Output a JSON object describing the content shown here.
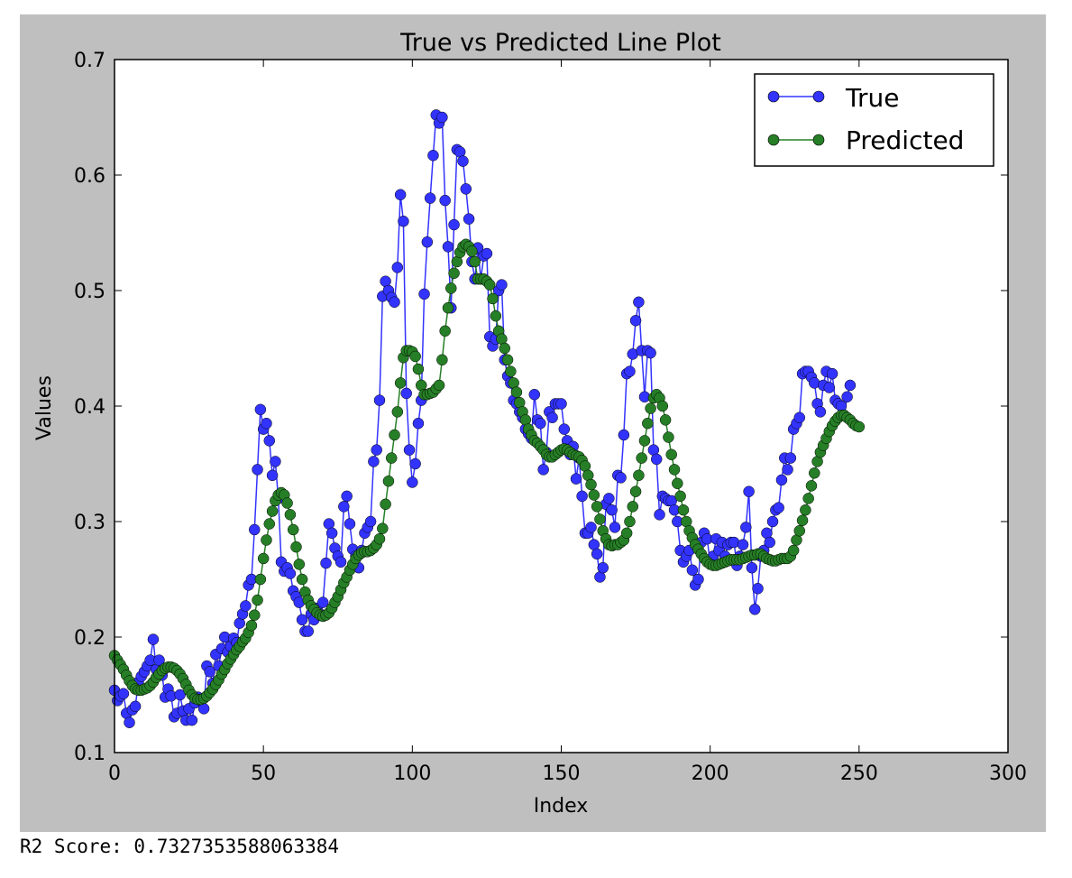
{
  "chart_data": {
    "type": "line",
    "title": "True vs Predicted Line Plot",
    "xlabel": "Index",
    "ylabel": "Values",
    "xlim": [
      0,
      300
    ],
    "ylim": [
      0.1,
      0.7
    ],
    "xticks": [
      0,
      50,
      100,
      150,
      200,
      250,
      300
    ],
    "yticks": [
      0.1,
      0.2,
      0.3,
      0.4,
      0.5,
      0.6,
      0.7
    ],
    "grid": false,
    "legend_position": "top-right",
    "series": [
      {
        "name": "True",
        "color": "#3333ff",
        "values": [
          0.154,
          0.145,
          0.149,
          0.151,
          0.134,
          0.126,
          0.137,
          0.14,
          0.161,
          0.166,
          0.17,
          0.175,
          0.18,
          0.198,
          0.172,
          0.18,
          0.167,
          0.148,
          0.155,
          0.149,
          0.131,
          0.134,
          0.15,
          0.136,
          0.128,
          0.138,
          0.128,
          0.143,
          0.148,
          0.145,
          0.138,
          0.175,
          0.17,
          0.16,
          0.185,
          0.175,
          0.19,
          0.2,
          0.187,
          0.192,
          0.199,
          0.195,
          0.212,
          0.22,
          0.227,
          0.245,
          0.25,
          0.293,
          0.345,
          0.397,
          0.38,
          0.385,
          0.37,
          0.34,
          0.352,
          0.32,
          0.265,
          0.257,
          0.26,
          0.255,
          0.24,
          0.235,
          0.23,
          0.215,
          0.205,
          0.205,
          0.22,
          0.215,
          0.225,
          0.22,
          0.23,
          0.264,
          0.298,
          0.29,
          0.277,
          0.27,
          0.265,
          0.313,
          0.322,
          0.298,
          0.276,
          0.27,
          0.26,
          0.275,
          0.29,
          0.295,
          0.3,
          0.352,
          0.362,
          0.405,
          0.495,
          0.508,
          0.5,
          0.494,
          0.49,
          0.52,
          0.583,
          0.56,
          0.411,
          0.362,
          0.334,
          0.35,
          0.385,
          0.405,
          0.497,
          0.542,
          0.58,
          0.617,
          0.652,
          0.645,
          0.65,
          0.578,
          0.538,
          0.485,
          0.557,
          0.622,
          0.62,
          0.612,
          0.588,
          0.562,
          0.525,
          0.51,
          0.537,
          0.51,
          0.53,
          0.532,
          0.46,
          0.452,
          0.458,
          0.5,
          0.505,
          0.44,
          0.426,
          0.42,
          0.405,
          0.402,
          0.395,
          0.39,
          0.38,
          0.376,
          0.372,
          0.41,
          0.388,
          0.385,
          0.345,
          0.36,
          0.395,
          0.39,
          0.402,
          0.402,
          0.402,
          0.38,
          0.37,
          0.358,
          0.365,
          0.337,
          0.355,
          0.322,
          0.29,
          0.29,
          0.295,
          0.28,
          0.272,
          0.252,
          0.26,
          0.315,
          0.32,
          0.31,
          0.295,
          0.34,
          0.338,
          0.375,
          0.428,
          0.43,
          0.445,
          0.474,
          0.49,
          0.448,
          0.408,
          0.448,
          0.446,
          0.362,
          0.354,
          0.306,
          0.322,
          0.32,
          0.318,
          0.318,
          0.31,
          0.3,
          0.275,
          0.265,
          0.27,
          0.275,
          0.258,
          0.245,
          0.25,
          0.282,
          0.29,
          0.285,
          0.264,
          0.27,
          0.285,
          0.275,
          0.282,
          0.27,
          0.28,
          0.282,
          0.282,
          0.262,
          0.27,
          0.28,
          0.295,
          0.326,
          0.26,
          0.224,
          0.242,
          0.27,
          0.275,
          0.29,
          0.282,
          0.3,
          0.31,
          0.312,
          0.336,
          0.355,
          0.345,
          0.355,
          0.38,
          0.385,
          0.39,
          0.428,
          0.43,
          0.43,
          0.425,
          0.42,
          0.402,
          0.395,
          0.418,
          0.43,
          0.416,
          0.428,
          0.405,
          0.402,
          0.4,
          0.392,
          0.408,
          0.418
        ]
      },
      {
        "name": "Predicted",
        "color": "#267f26",
        "values": [
          0.184,
          0.18,
          0.176,
          0.172,
          0.167,
          0.162,
          0.158,
          0.155,
          0.154,
          0.154,
          0.155,
          0.156,
          0.158,
          0.161,
          0.165,
          0.168,
          0.171,
          0.173,
          0.174,
          0.174,
          0.173,
          0.171,
          0.168,
          0.164,
          0.159,
          0.154,
          0.15,
          0.147,
          0.146,
          0.146,
          0.147,
          0.149,
          0.152,
          0.155,
          0.159,
          0.163,
          0.168,
          0.172,
          0.177,
          0.181,
          0.185,
          0.189,
          0.192,
          0.196,
          0.199,
          0.204,
          0.21,
          0.219,
          0.232,
          0.25,
          0.268,
          0.284,
          0.298,
          0.309,
          0.318,
          0.323,
          0.325,
          0.323,
          0.316,
          0.306,
          0.293,
          0.278,
          0.263,
          0.25,
          0.239,
          0.232,
          0.227,
          0.224,
          0.221,
          0.219,
          0.218,
          0.219,
          0.221,
          0.225,
          0.23,
          0.235,
          0.241,
          0.247,
          0.252,
          0.258,
          0.263,
          0.268,
          0.271,
          0.273,
          0.274,
          0.274,
          0.275,
          0.277,
          0.28,
          0.285,
          0.294,
          0.315,
          0.335,
          0.355,
          0.375,
          0.395,
          0.42,
          0.442,
          0.448,
          0.448,
          0.447,
          0.443,
          0.432,
          0.418,
          0.41,
          0.41,
          0.411,
          0.412,
          0.415,
          0.418,
          0.44,
          0.465,
          0.485,
          0.502,
          0.515,
          0.525,
          0.533,
          0.538,
          0.54,
          0.538,
          0.534,
          0.525,
          0.51,
          0.51,
          0.51,
          0.508,
          0.505,
          0.493,
          0.478,
          0.465,
          0.458,
          0.45,
          0.44,
          0.43,
          0.42,
          0.412,
          0.403,
          0.395,
          0.388,
          0.38,
          0.375,
          0.37,
          0.368,
          0.365,
          0.362,
          0.358,
          0.356,
          0.356,
          0.358,
          0.36,
          0.362,
          0.363,
          0.362,
          0.36,
          0.358,
          0.357,
          0.356,
          0.353,
          0.348,
          0.34,
          0.332,
          0.323,
          0.313,
          0.302,
          0.292,
          0.285,
          0.28,
          0.279,
          0.28,
          0.28,
          0.282,
          0.284,
          0.29,
          0.3,
          0.313,
          0.326,
          0.34,
          0.355,
          0.37,
          0.385,
          0.398,
          0.407,
          0.41,
          0.407,
          0.4,
          0.388,
          0.373,
          0.358,
          0.345,
          0.333,
          0.322,
          0.31,
          0.3,
          0.292,
          0.286,
          0.28,
          0.276,
          0.272,
          0.268,
          0.265,
          0.263,
          0.262,
          0.262,
          0.263,
          0.264,
          0.265,
          0.266,
          0.267,
          0.267,
          0.267,
          0.267,
          0.268,
          0.269,
          0.27,
          0.271,
          0.271,
          0.272,
          0.272,
          0.27,
          0.268,
          0.267,
          0.266,
          0.266,
          0.267,
          0.268,
          0.268,
          0.268,
          0.27,
          0.275,
          0.284,
          0.292,
          0.301,
          0.31,
          0.32,
          0.331,
          0.342,
          0.352,
          0.36,
          0.366,
          0.372,
          0.378,
          0.383,
          0.387,
          0.39,
          0.392,
          0.392,
          0.39,
          0.388,
          0.385,
          0.383,
          0.382
        ]
      }
    ]
  },
  "output": {
    "r2_score_text": "R2 Score: 0.7327353588063384"
  }
}
